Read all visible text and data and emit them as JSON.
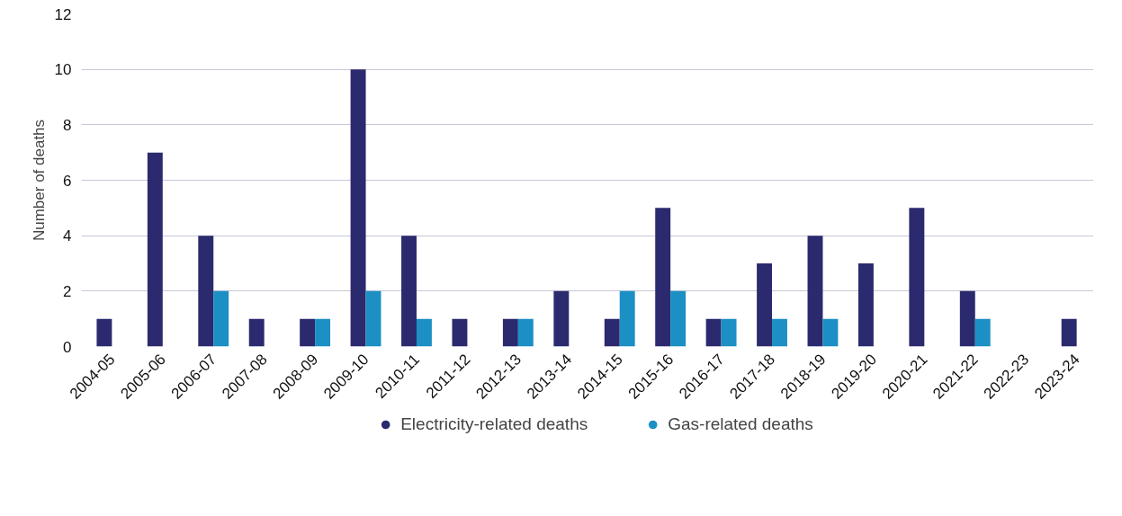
{
  "chart_data": {
    "type": "bar",
    "ylabel": "Number of deaths",
    "categories": [
      "2004-05",
      "2005-06",
      "2006-07",
      "2007-08",
      "2008-09",
      "2009-10",
      "2010-11",
      "2011-12",
      "2012-13",
      "2013-14",
      "2014-15",
      "2015-16",
      "2016-17",
      "2017-18",
      "2018-19",
      "2019-20",
      "2020-21",
      "2021-22",
      "2022-23",
      "2023-24"
    ],
    "series": [
      {
        "name": "Electricity-related deaths",
        "color": "#2b2a6e",
        "values": [
          1,
          7,
          4,
          1,
          1,
          10,
          4,
          1,
          1,
          2,
          1,
          5,
          1,
          3,
          4,
          3,
          5,
          2,
          0,
          1
        ]
      },
      {
        "name": "Gas-related deaths",
        "color": "#1c8fc4",
        "values": [
          0,
          0,
          2,
          0,
          1,
          2,
          1,
          0,
          1,
          0,
          2,
          2,
          1,
          1,
          1,
          0,
          0,
          1,
          0,
          0
        ]
      }
    ],
    "ylim": [
      0,
      12
    ],
    "yticks": [
      0,
      2,
      4,
      6,
      8,
      10,
      12
    ],
    "grid": "y",
    "legend": "bottom"
  }
}
